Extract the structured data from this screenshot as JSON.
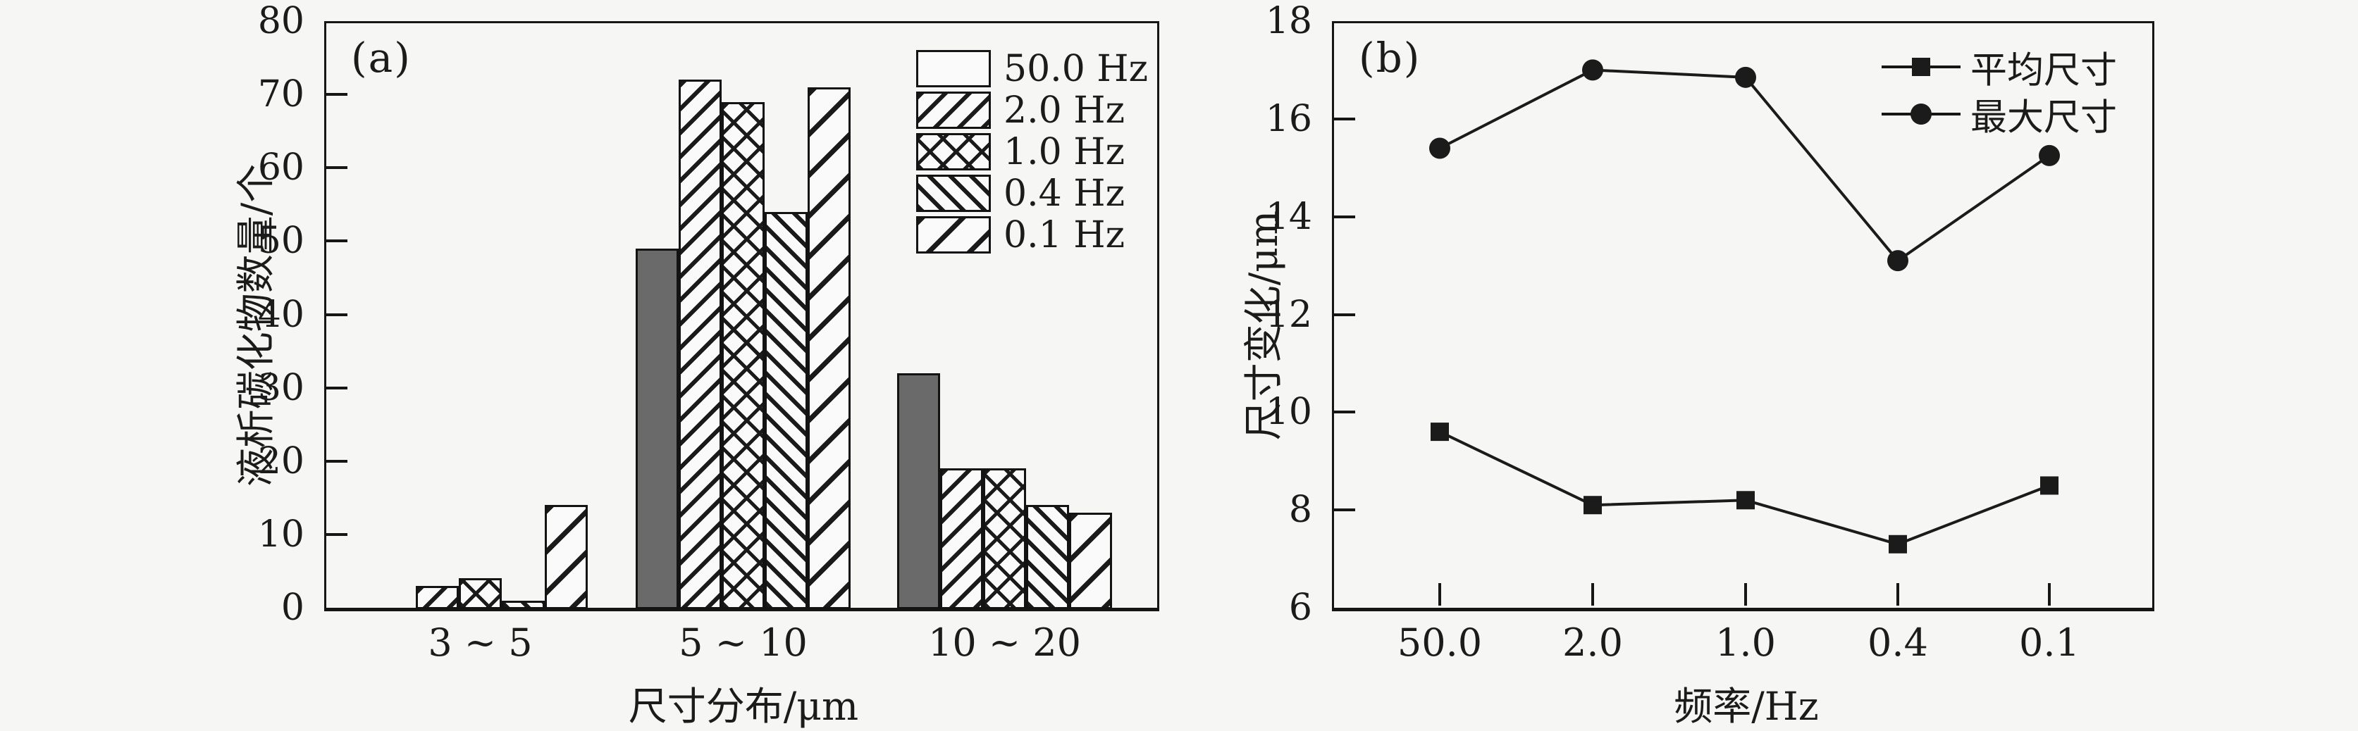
{
  "figure_bg": "#f6f6f4",
  "ink_color": "#1b1b1b",
  "chart_data": [
    {
      "type": "bar",
      "panel_label": "(a)",
      "xlabel": "尺寸分布/μm",
      "ylabel": "液析碳化物数量/个",
      "categories": [
        "3 ~ 5",
        "5 ~ 10",
        "10 ~ 20"
      ],
      "ylim": [
        0,
        80
      ],
      "yticks": [
        0,
        10,
        20,
        30,
        40,
        50,
        60,
        70,
        80
      ],
      "grid": "off",
      "legend_position": "upper-right-inside",
      "series": [
        {
          "name": "50.0 Hz",
          "pattern": "solid-gray",
          "values": [
            0,
            49,
            32
          ]
        },
        {
          "name": "2.0 Hz",
          "pattern": "hatch-forward",
          "values": [
            3,
            72,
            19
          ]
        },
        {
          "name": "1.0 Hz",
          "pattern": "hatch-cross",
          "values": [
            4,
            69,
            19
          ]
        },
        {
          "name": "0.4 Hz",
          "pattern": "hatch-back",
          "values": [
            1,
            54,
            14
          ]
        },
        {
          "name": "0.1 Hz",
          "pattern": "hatch-forward-wide",
          "values": [
            14,
            71,
            13
          ]
        }
      ],
      "colors": {
        "solid_bar_fill": "#6a6a6a",
        "hatch_ink": "#1a1a1a"
      }
    },
    {
      "type": "line",
      "panel_label": "(b)",
      "xlabel": "频率/Hz",
      "ylabel": "尺寸变化/μm",
      "categories": [
        "50.0",
        "2.0",
        "1.0",
        "0.4",
        "0.1"
      ],
      "ylim": [
        6,
        18
      ],
      "yticks": [
        6,
        8,
        10,
        12,
        14,
        16,
        18
      ],
      "grid": "off",
      "legend_position": "upper-right-inside",
      "series": [
        {
          "name": "平均尺寸",
          "marker": "square",
          "values": [
            9.6,
            8.1,
            8.2,
            7.3,
            8.5
          ]
        },
        {
          "name": "最大尺寸",
          "marker": "circle",
          "values": [
            15.4,
            17.0,
            16.85,
            13.1,
            15.25
          ]
        }
      ],
      "colors": {
        "line": "#1b1b1b",
        "marker": "#1b1b1b"
      }
    }
  ]
}
